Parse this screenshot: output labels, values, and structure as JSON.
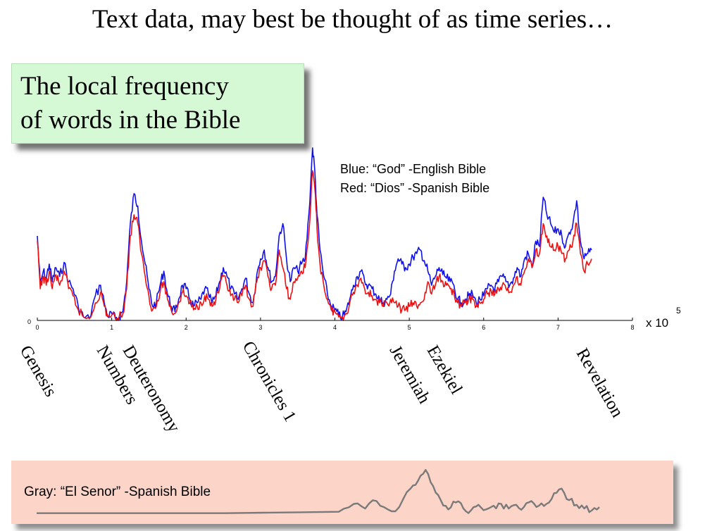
{
  "title": "Text data, may best be thought of as time series…",
  "subtitle": {
    "line1": "The local frequency",
    "line2": "of words in the Bible"
  },
  "legend": {
    "blue": "Blue: “God” -English Bible",
    "red": "Red: “Dios” -Spanish Bible"
  },
  "gray_label": "Gray: “El Senor” -Spanish Bible",
  "colors": {
    "blue": "#1010ee",
    "red": "#ee1010",
    "gray": "#7a7a7a"
  },
  "books": [
    "Genesis",
    "Numbers",
    "Deuteronomy",
    "Chronicles 1",
    "Jeremiah",
    "Ezekiel",
    "Revelation"
  ],
  "chart_data": [
    {
      "type": "line",
      "x_tick_labels": [
        "0",
        "1",
        "2",
        "3",
        "4",
        "5",
        "6",
        "7",
        "8"
      ],
      "y_tick_labels": [
        "0"
      ],
      "x_exponent": "x 10",
      "x_exponent_power": "5",
      "xlim": [
        0,
        8
      ],
      "ylim": [
        0,
        1
      ],
      "series": [
        {
          "name": "Blue: “God” -English Bible",
          "color": "#1010ee",
          "x": [
            0,
            0.04,
            0.08,
            0.12,
            0.16,
            0.2,
            0.25,
            0.3,
            0.36,
            0.42,
            0.48,
            0.55,
            0.62,
            0.7,
            0.78,
            0.85,
            0.9,
            0.95,
            1.0,
            1.05,
            1.1,
            1.15,
            1.2,
            1.25,
            1.3,
            1.35,
            1.4,
            1.45,
            1.5,
            1.55,
            1.6,
            1.65,
            1.7,
            1.75,
            1.8,
            1.85,
            1.9,
            1.95,
            2.0,
            2.05,
            2.1,
            2.15,
            2.2,
            2.25,
            2.3,
            2.35,
            2.4,
            2.45,
            2.5,
            2.55,
            2.6,
            2.65,
            2.7,
            2.75,
            2.8,
            2.85,
            2.9,
            2.95,
            3.0,
            3.05,
            3.1,
            3.15,
            3.2,
            3.25,
            3.3,
            3.35,
            3.4,
            3.45,
            3.5,
            3.55,
            3.6,
            3.65,
            3.7,
            3.73,
            3.76,
            3.8,
            3.85,
            3.9,
            3.95,
            4.0,
            4.05,
            4.1,
            4.15,
            4.2,
            4.25,
            4.3,
            4.35,
            4.4,
            4.45,
            4.5,
            4.55,
            4.6,
            4.65,
            4.7,
            4.75,
            4.8,
            4.85,
            4.9,
            4.95,
            5.0,
            5.05,
            5.1,
            5.15,
            5.2,
            5.25,
            5.3,
            5.35,
            5.4,
            5.45,
            5.5,
            5.55,
            5.6,
            5.65,
            5.7,
            5.75,
            5.8,
            5.85,
            5.9,
            5.95,
            6.0,
            6.05,
            6.1,
            6.15,
            6.2,
            6.25,
            6.3,
            6.35,
            6.4,
            6.45,
            6.5,
            6.55,
            6.6,
            6.65,
            6.7,
            6.75,
            6.8,
            6.85,
            6.9,
            6.95,
            7.0,
            7.05,
            7.1,
            7.15,
            7.2,
            7.25,
            7.3,
            7.35,
            7.4,
            7.45
          ],
          "values": [
            0.48,
            0.2,
            0.28,
            0.24,
            0.32,
            0.22,
            0.3,
            0.25,
            0.33,
            0.22,
            0.18,
            0.08,
            0.02,
            0.01,
            0.14,
            0.2,
            0.1,
            0.02,
            0.04,
            0.01,
            0.02,
            0.05,
            0.22,
            0.55,
            0.72,
            0.65,
            0.45,
            0.32,
            0.18,
            0.08,
            0.1,
            0.2,
            0.28,
            0.15,
            0.08,
            0.05,
            0.12,
            0.2,
            0.18,
            0.12,
            0.08,
            0.1,
            0.12,
            0.18,
            0.15,
            0.1,
            0.14,
            0.22,
            0.3,
            0.25,
            0.18,
            0.15,
            0.12,
            0.18,
            0.24,
            0.15,
            0.1,
            0.26,
            0.35,
            0.4,
            0.3,
            0.22,
            0.25,
            0.48,
            0.55,
            0.35,
            0.22,
            0.3,
            0.28,
            0.32,
            0.35,
            0.6,
            0.98,
            0.85,
            0.6,
            0.4,
            0.25,
            0.15,
            0.08,
            0.06,
            0.03,
            0.02,
            0.05,
            0.12,
            0.2,
            0.25,
            0.28,
            0.22,
            0.2,
            0.18,
            0.15,
            0.12,
            0.1,
            0.12,
            0.15,
            0.28,
            0.35,
            0.32,
            0.3,
            0.32,
            0.36,
            0.38,
            0.4,
            0.34,
            0.28,
            0.2,
            0.25,
            0.3,
            0.26,
            0.24,
            0.22,
            0.2,
            0.12,
            0.1,
            0.12,
            0.14,
            0.15,
            0.1,
            0.12,
            0.14,
            0.18,
            0.2,
            0.18,
            0.22,
            0.25,
            0.22,
            0.2,
            0.24,
            0.3,
            0.25,
            0.35,
            0.38,
            0.3,
            0.45,
            0.42,
            0.7,
            0.6,
            0.55,
            0.5,
            0.52,
            0.48,
            0.42,
            0.5,
            0.55,
            0.68,
            0.45,
            0.35,
            0.38,
            0.4
          ]
        },
        {
          "name": "Red: “Dios” -Spanish Bible",
          "color": "#ee1010",
          "x": [
            0,
            0.04,
            0.08,
            0.12,
            0.16,
            0.2,
            0.25,
            0.3,
            0.36,
            0.42,
            0.48,
            0.55,
            0.62,
            0.7,
            0.78,
            0.85,
            0.9,
            0.95,
            1.0,
            1.05,
            1.1,
            1.15,
            1.2,
            1.25,
            1.3,
            1.35,
            1.4,
            1.45,
            1.5,
            1.55,
            1.6,
            1.65,
            1.7,
            1.75,
            1.8,
            1.85,
            1.9,
            1.95,
            2.0,
            2.05,
            2.1,
            2.15,
            2.2,
            2.25,
            2.3,
            2.35,
            2.4,
            2.45,
            2.5,
            2.55,
            2.6,
            2.65,
            2.7,
            2.75,
            2.8,
            2.85,
            2.9,
            2.95,
            3.0,
            3.05,
            3.1,
            3.15,
            3.2,
            3.25,
            3.3,
            3.35,
            3.4,
            3.45,
            3.5,
            3.55,
            3.6,
            3.65,
            3.7,
            3.73,
            3.76,
            3.8,
            3.85,
            3.9,
            3.95,
            4.0,
            4.05,
            4.1,
            4.15,
            4.2,
            4.25,
            4.3,
            4.35,
            4.4,
            4.45,
            4.5,
            4.55,
            4.6,
            4.65,
            4.7,
            4.75,
            4.8,
            4.85,
            4.9,
            4.95,
            5.0,
            5.05,
            5.1,
            5.15,
            5.2,
            5.25,
            5.3,
            5.35,
            5.4,
            5.45,
            5.5,
            5.55,
            5.6,
            5.65,
            5.7,
            5.75,
            5.8,
            5.85,
            5.9,
            5.95,
            6.0,
            6.05,
            6.1,
            6.15,
            6.2,
            6.25,
            6.3,
            6.35,
            6.4,
            6.45,
            6.5,
            6.55,
            6.6,
            6.65,
            6.7,
            6.75,
            6.8,
            6.85,
            6.9,
            6.95,
            7.0,
            7.05,
            7.1,
            7.15,
            7.2,
            7.25,
            7.3,
            7.35,
            7.4,
            7.45
          ],
          "values": [
            0.45,
            0.18,
            0.25,
            0.2,
            0.28,
            0.18,
            0.26,
            0.2,
            0.28,
            0.18,
            0.14,
            0.06,
            0.02,
            0.01,
            0.1,
            0.16,
            0.08,
            0.02,
            0.03,
            0.01,
            0.02,
            0.04,
            0.18,
            0.48,
            0.6,
            0.55,
            0.38,
            0.25,
            0.14,
            0.06,
            0.08,
            0.16,
            0.22,
            0.12,
            0.06,
            0.04,
            0.1,
            0.16,
            0.14,
            0.1,
            0.06,
            0.08,
            0.1,
            0.14,
            0.12,
            0.08,
            0.12,
            0.18,
            0.25,
            0.2,
            0.14,
            0.12,
            0.1,
            0.14,
            0.2,
            0.12,
            0.08,
            0.22,
            0.3,
            0.34,
            0.25,
            0.18,
            0.2,
            0.4,
            0.3,
            0.18,
            0.12,
            0.22,
            0.24,
            0.28,
            0.3,
            0.5,
            0.85,
            0.75,
            0.52,
            0.32,
            0.2,
            0.12,
            0.06,
            0.05,
            0.02,
            0.02,
            0.04,
            0.1,
            0.16,
            0.2,
            0.24,
            0.18,
            0.16,
            0.14,
            0.12,
            0.1,
            0.08,
            0.1,
            0.12,
            0.1,
            0.08,
            0.06,
            0.06,
            0.08,
            0.1,
            0.08,
            0.1,
            0.12,
            0.22,
            0.15,
            0.2,
            0.25,
            0.22,
            0.2,
            0.18,
            0.16,
            0.1,
            0.08,
            0.1,
            0.12,
            0.12,
            0.08,
            0.1,
            0.12,
            0.15,
            0.17,
            0.15,
            0.18,
            0.2,
            0.18,
            0.16,
            0.2,
            0.25,
            0.2,
            0.28,
            0.35,
            0.3,
            0.4,
            0.38,
            0.55,
            0.48,
            0.42,
            0.4,
            0.42,
            0.38,
            0.35,
            0.4,
            0.45,
            0.55,
            0.38,
            0.28,
            0.32,
            0.35
          ]
        }
      ]
    },
    {
      "type": "line",
      "series": [
        {
          "name": "Gray: “El Senor” -Spanish Bible",
          "color": "#7a7a7a",
          "x": [
            0,
            0.5,
            1.0,
            1.5,
            2.0,
            2.5,
            3.0,
            3.5,
            4.0,
            4.2,
            4.35,
            4.5,
            4.65,
            4.8,
            4.95,
            5.05,
            5.15,
            5.25,
            5.35,
            5.45,
            5.55,
            5.65,
            5.75,
            5.85,
            5.95,
            6.05,
            6.15,
            6.25,
            6.35,
            6.45,
            6.55,
            6.65,
            6.75,
            6.85,
            6.95,
            7.05,
            7.15,
            7.25,
            7.35,
            7.45
          ],
          "values": [
            0.02,
            0.02,
            0.02,
            0.02,
            0.02,
            0.02,
            0.03,
            0.04,
            0.05,
            0.22,
            0.12,
            0.28,
            0.1,
            0.15,
            0.55,
            0.72,
            0.95,
            0.6,
            0.3,
            0.1,
            0.25,
            0.12,
            0.08,
            0.2,
            0.1,
            0.18,
            0.22,
            0.12,
            0.2,
            0.15,
            0.28,
            0.18,
            0.22,
            0.45,
            0.55,
            0.3,
            0.2,
            0.12,
            0.08,
            0.15
          ]
        }
      ]
    }
  ]
}
